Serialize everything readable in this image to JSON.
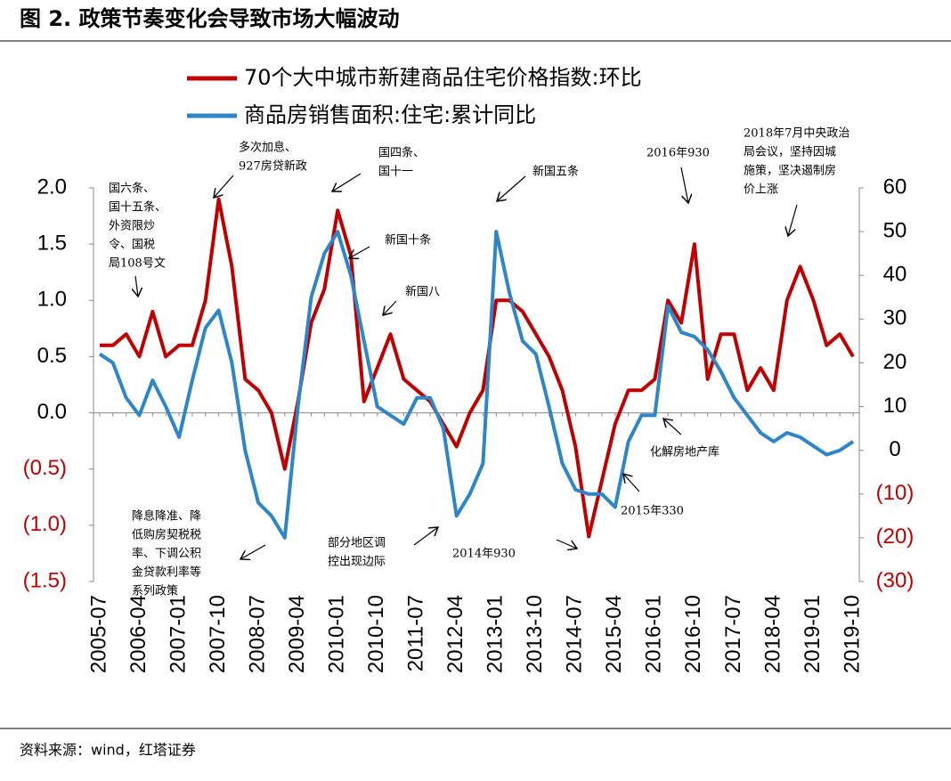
{
  "chart_data": {
    "type": "line",
    "title": "图 2. 政策节奏变化会导致市场大幅波动",
    "source": "资料来源：wind，红塔证券",
    "x": [
      "2005-07",
      "2005-10",
      "2006-01",
      "2006-04",
      "2006-07",
      "2006-10",
      "2007-01",
      "2007-04",
      "2007-07",
      "2007-10",
      "2008-01",
      "2008-04",
      "2008-07",
      "2008-10",
      "2009-01",
      "2009-04",
      "2009-07",
      "2009-10",
      "2010-01",
      "2010-04",
      "2010-07",
      "2010-10",
      "2011-01",
      "2011-04",
      "2011-07",
      "2011-10",
      "2012-01",
      "2012-04",
      "2012-07",
      "2012-10",
      "2013-01",
      "2013-04",
      "2013-07",
      "2013-10",
      "2014-01",
      "2014-04",
      "2014-07",
      "2014-10",
      "2015-01",
      "2015-04",
      "2015-07",
      "2015-10",
      "2016-01",
      "2016-04",
      "2016-07",
      "2016-10",
      "2017-01",
      "2017-04",
      "2017-07",
      "2017-10",
      "2018-01",
      "2018-04",
      "2018-07",
      "2018-10",
      "2019-01",
      "2019-04",
      "2019-07",
      "2019-10"
    ],
    "xticks": [
      "2005-07",
      "2006-04",
      "2007-01",
      "2007-10",
      "2008-07",
      "2009-04",
      "2010-01",
      "2010-10",
      "2011-07",
      "2012-04",
      "2013-01",
      "2013-10",
      "2014-07",
      "2015-04",
      "2016-01",
      "2016-10",
      "2017-07",
      "2018-04",
      "2019-01",
      "2019-10"
    ],
    "series": [
      {
        "name": "70个大中城市新建商品住宅价格指数:环比",
        "color": "#c00000",
        "values": [
          0.6,
          0.6,
          0.7,
          0.5,
          0.9,
          0.5,
          0.6,
          0.6,
          1.0,
          1.9,
          1.3,
          0.3,
          0.2,
          0.0,
          -0.5,
          0.1,
          0.8,
          1.1,
          1.8,
          1.4,
          0.1,
          0.4,
          0.7,
          0.3,
          0.2,
          0.1,
          -0.1,
          -0.3,
          0.0,
          0.2,
          1.0,
          1.0,
          0.9,
          0.7,
          0.5,
          0.2,
          -0.3,
          -1.1,
          -0.6,
          -0.1,
          0.2,
          0.2,
          0.3,
          1.0,
          0.8,
          1.5,
          0.3,
          0.7,
          0.7,
          0.2,
          0.4,
          0.2,
          1.0,
          1.3,
          1.0,
          0.6,
          0.7,
          0.5
        ]
      },
      {
        "name": "商品房销售面积:住宅:累计同比",
        "color": "#2e86c8",
        "axis": "y2",
        "values": [
          22,
          20,
          12,
          8,
          16,
          10,
          3,
          16,
          28,
          32,
          20,
          0,
          -12,
          -15,
          -20,
          10,
          35,
          45,
          50,
          40,
          25,
          10,
          8,
          6,
          12,
          12,
          5,
          -15,
          -10,
          -3,
          50,
          36,
          25,
          22,
          10,
          -3,
          -9,
          -10,
          -10,
          -13,
          2,
          8,
          8,
          33,
          27,
          26,
          23,
          18,
          12,
          8,
          4,
          2,
          4,
          3,
          1,
          -1,
          0,
          2
        ]
      }
    ],
    "ylim": [
      -1.5,
      2.0
    ],
    "yticks": [
      {
        "value": 2.0,
        "label": "2.0"
      },
      {
        "value": 1.5,
        "label": "1.5"
      },
      {
        "value": 1.0,
        "label": "1.0"
      },
      {
        "value": 0.5,
        "label": "0.5"
      },
      {
        "value": 0.0,
        "label": "0.0"
      },
      {
        "value": -0.5,
        "label": "(0.5)"
      },
      {
        "value": -1.0,
        "label": "(1.0)"
      },
      {
        "value": -1.5,
        "label": "(1.5)"
      }
    ],
    "y2lim": [
      -30,
      60
    ],
    "y2ticks": [
      60,
      50,
      40,
      30,
      20,
      10,
      0,
      {
        "value": -10,
        "label": "(10)"
      },
      {
        "value": -20,
        "label": "(20)"
      },
      {
        "value": -30,
        "label": "(30)"
      }
    ],
    "negative_tick_color": "#c00000",
    "annotations": [
      [
        "国六条、",
        "国十五条、",
        "外资限炒",
        "令、国税",
        "局108号文"
      ],
      [
        "多次加息、",
        "927房贷新政"
      ],
      [
        "国四条、",
        "国十一"
      ],
      [
        "新国十条"
      ],
      [
        "新国八"
      ],
      [
        "新国五条"
      ],
      [
        "2016年930"
      ],
      [
        "2018年7月中央政治",
        "局会议，坚持因城",
        "施策，坚决遏制房",
        "价上涨"
      ],
      [
        "降息降准、降",
        "低购房契税税",
        "率、下调公积",
        "金贷款利率等",
        "系列政策"
      ],
      [
        "部分地区调",
        "控出现边际"
      ],
      [
        "2014年930"
      ],
      [
        "2015年330"
      ],
      [
        "化解房地产库"
      ]
    ]
  }
}
